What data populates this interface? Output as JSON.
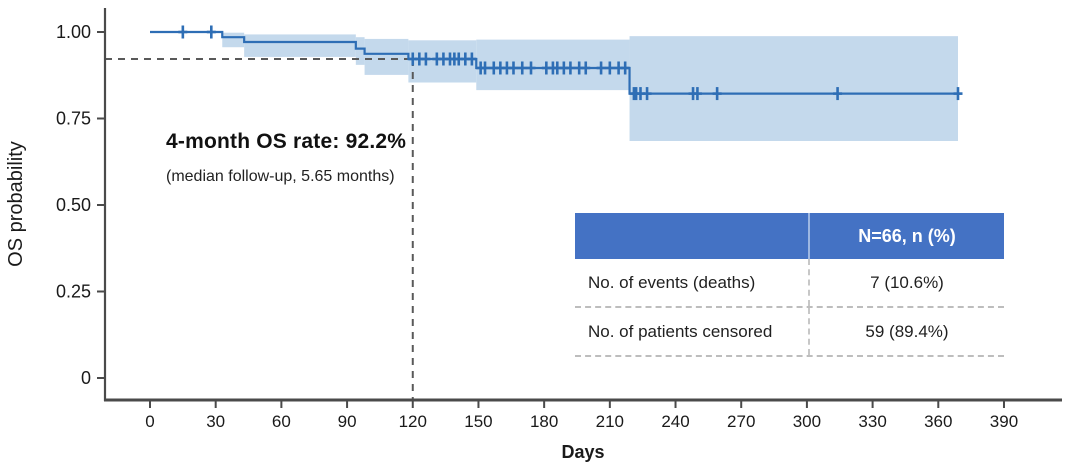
{
  "annotations": {
    "os_rate": "4-month OS rate: 92.2%",
    "follow_up": "(median follow-up, 5.65 months)"
  },
  "summary_table": {
    "header_value": "N=66, n (%)",
    "rows": [
      {
        "label": "No. of events (deaths)",
        "value": "7 (10.6%)"
      },
      {
        "label": "No. of patients censored",
        "value": "59 (89.4%)"
      }
    ]
  },
  "chart_data": {
    "type": "line",
    "subtype": "kaplan-meier-step",
    "title": "",
    "xlabel": "Days",
    "ylabel": "OS probability",
    "x_ticks": [
      0,
      30,
      60,
      90,
      120,
      150,
      180,
      210,
      240,
      270,
      300,
      330,
      360,
      390
    ],
    "y_ticks": [
      {
        "value": 0,
        "label": "0"
      },
      {
        "value": 0.25,
        "label": "0.25"
      },
      {
        "value": 0.5,
        "label": "0.50"
      },
      {
        "value": 0.75,
        "label": "0.75"
      },
      {
        "value": 1.0,
        "label": "1.00"
      }
    ],
    "xlim": [
      -21,
      416
    ],
    "ylim": [
      -0.06,
      1.07
    ],
    "grid": false,
    "legend": "none",
    "km_steps": [
      [
        0,
        1.0
      ],
      [
        33,
        0.985
      ],
      [
        43,
        0.971
      ],
      [
        94,
        0.952
      ],
      [
        98,
        0.937
      ],
      [
        118,
        0.922
      ],
      [
        149,
        0.896
      ],
      [
        219,
        0.822
      ]
    ],
    "end_time": 371,
    "ci_segments": [
      [
        33,
        43,
        0.956,
        0.998
      ],
      [
        43,
        94,
        0.928,
        0.993
      ],
      [
        94,
        98,
        0.905,
        0.985
      ],
      [
        98,
        118,
        0.876,
        0.98
      ],
      [
        118,
        149,
        0.854,
        0.976
      ],
      [
        149,
        219,
        0.832,
        0.978
      ],
      [
        219,
        369,
        0.685,
        0.988
      ]
    ],
    "censor_marks": [
      [
        15,
        1.0
      ],
      [
        28,
        1.0
      ],
      [
        120,
        0.922
      ],
      [
        123,
        0.922
      ],
      [
        126,
        0.922
      ],
      [
        131,
        0.922
      ],
      [
        134,
        0.922
      ],
      [
        137,
        0.922
      ],
      [
        139,
        0.922
      ],
      [
        141,
        0.922
      ],
      [
        144,
        0.922
      ],
      [
        147,
        0.922
      ],
      [
        151,
        0.896
      ],
      [
        153,
        0.896
      ],
      [
        157,
        0.896
      ],
      [
        160,
        0.896
      ],
      [
        163,
        0.896
      ],
      [
        166,
        0.896
      ],
      [
        170,
        0.896
      ],
      [
        174,
        0.896
      ],
      [
        181,
        0.896
      ],
      [
        184,
        0.896
      ],
      [
        186,
        0.896
      ],
      [
        189,
        0.896
      ],
      [
        192,
        0.896
      ],
      [
        196,
        0.896
      ],
      [
        199,
        0.896
      ],
      [
        206,
        0.896
      ],
      [
        210,
        0.896
      ],
      [
        214,
        0.896
      ],
      [
        217,
        0.896
      ],
      [
        221,
        0.822
      ],
      [
        222,
        0.822
      ],
      [
        224,
        0.822
      ],
      [
        227,
        0.822
      ],
      [
        248,
        0.822
      ],
      [
        250,
        0.822
      ],
      [
        259,
        0.822
      ],
      [
        314,
        0.822
      ],
      [
        369,
        0.822
      ]
    ],
    "reference_lines": {
      "x_day": 120,
      "y_prob": 0.922
    },
    "colors": {
      "line": "#2e6eb5",
      "band": "#c4d9ec",
      "censor": "#2e6eb5",
      "reference": "#595959",
      "axis": "#4a4a4a",
      "tick_text": "#1a1a1a",
      "table_header_bg": "#4472c4"
    }
  }
}
